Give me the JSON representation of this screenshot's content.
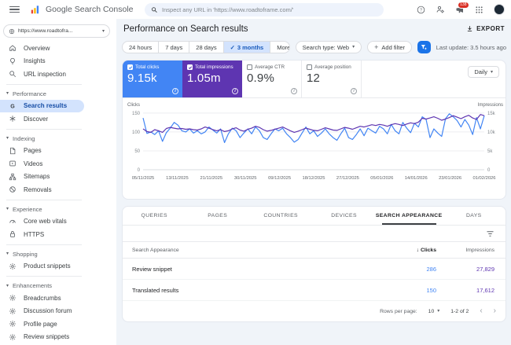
{
  "header": {
    "app_title": "Google Search Console",
    "search_placeholder": "Inspect any URL in 'https://www.roadtoframe.com/'",
    "notification_count": "138"
  },
  "sidebar": {
    "property_label": "https://www.roadtofra...",
    "sections": [
      {
        "title": null,
        "items": [
          {
            "label": "Overview",
            "icon": "home"
          },
          {
            "label": "Insights",
            "icon": "bulb"
          },
          {
            "label": "URL inspection",
            "icon": "magnifier"
          }
        ]
      },
      {
        "title": "Performance",
        "items": [
          {
            "label": "Search results",
            "icon": "g-letter",
            "active": true
          },
          {
            "label": "Discover",
            "icon": "discover"
          }
        ]
      },
      {
        "title": "Indexing",
        "items": [
          {
            "label": "Pages",
            "icon": "pages"
          },
          {
            "label": "Videos",
            "icon": "videos"
          },
          {
            "label": "Sitemaps",
            "icon": "sitemaps"
          },
          {
            "label": "Removals",
            "icon": "removals"
          }
        ]
      },
      {
        "title": "Experience",
        "items": [
          {
            "label": "Core web vitals",
            "icon": "gauge"
          },
          {
            "label": "HTTPS",
            "icon": "lock"
          }
        ]
      },
      {
        "title": "Shopping",
        "items": [
          {
            "label": "Product snippets",
            "icon": "gear"
          }
        ]
      },
      {
        "title": "Enhancements",
        "items": [
          {
            "label": "Breadcrumbs",
            "icon": "gear"
          },
          {
            "label": "Discussion forum",
            "icon": "gear"
          },
          {
            "label": "Profile page",
            "icon": "gear"
          },
          {
            "label": "Review snippets",
            "icon": "gear"
          }
        ]
      }
    ]
  },
  "page": {
    "title": "Performance on Search results",
    "export_label": "EXPORT",
    "last_update": "Last update: 3.5 hours ago"
  },
  "filters": {
    "date_ranges": [
      "24 hours",
      "7 days",
      "28 days",
      "3 months"
    ],
    "selected_range": "3 months",
    "more_label": "More",
    "search_type_label": "Search type: Web",
    "add_filter_label": "Add filter"
  },
  "metrics": {
    "granularity": "Daily",
    "cards": [
      {
        "label": "Total clicks",
        "value": "9.15k",
        "checked": true,
        "color": "#4285f4"
      },
      {
        "label": "Total impressions",
        "value": "1.05m",
        "checked": true,
        "color": "#5e35b1"
      },
      {
        "label": "Average CTR",
        "value": "0.9%",
        "checked": false
      },
      {
        "label": "Average position",
        "value": "12",
        "checked": false
      }
    ]
  },
  "chart_data": {
    "type": "line",
    "left_axis_label": "Clicks",
    "right_axis_label": "Impressions",
    "left_ticks": [
      150,
      100,
      50,
      0
    ],
    "right_tick_labels": [
      "15k",
      "10k",
      "5k",
      "0"
    ],
    "left_max": 160,
    "right_max": 16000,
    "x_tick_labels": [
      "05/11/2025",
      "13/11/2025",
      "21/11/2025",
      "30/11/2025",
      "09/12/2025",
      "18/12/2025",
      "27/12/2025",
      "05/01/2026",
      "14/01/2026",
      "23/01/2026",
      "01/02/2026"
    ],
    "series": [
      {
        "name": "Total clicks",
        "axis": "left",
        "color": "#4285f4",
        "values": [
          137,
          96,
          100,
          93,
          103,
          75,
          98,
          110,
          125,
          118,
          103,
          100,
          108,
          97,
          103,
          95,
          100,
          113,
          105,
          97,
          108,
          72,
          95,
          110,
          103,
          85,
          97,
          108,
          95,
          113,
          103,
          85,
          80,
          95,
          108,
          103,
          110,
          95,
          85,
          73,
          80,
          97,
          113,
          95,
          103,
          88,
          97,
          108,
          95,
          85,
          78,
          95,
          110,
          85,
          80,
          93,
          108,
          90,
          110,
          103,
          97,
          115,
          108,
          95,
          120,
          103,
          95,
          125,
          110,
          98,
          123,
          113,
          140,
          133,
          85,
          108,
          97,
          88,
          135,
          148,
          140,
          130,
          113,
          133,
          118,
          93,
          138,
          108,
          143
        ]
      },
      {
        "name": "Total impressions",
        "axis": "right",
        "color": "#5e35b1",
        "values": [
          10800,
          10100,
          9900,
          10600,
          10300,
          9900,
          10900,
          11200,
          11000,
          10800,
          10900,
          10700,
          10800,
          10600,
          10500,
          10800,
          11300,
          11000,
          10600,
          10300,
          10600,
          10100,
          10300,
          10800,
          11100,
          10500,
          10200,
          10700,
          11000,
          11500,
          11200,
          10600,
          10200,
          10400,
          10700,
          11000,
          11300,
          10800,
          10300,
          9900,
          10200,
          10600,
          11000,
          10700,
          10400,
          10300,
          10700,
          11100,
          10800,
          10500,
          10400,
          10800,
          11200,
          11000,
          10700,
          11100,
          11500,
          11300,
          11600,
          11900,
          11700,
          12000,
          11800,
          11500,
          11900,
          12200,
          12000,
          11700,
          12100,
          12400,
          12200,
          12600,
          13600,
          13400,
          13700,
          14000,
          13600,
          13100,
          13400,
          13800,
          14300,
          13900,
          13500,
          14000,
          14400,
          13700,
          13300,
          14600,
          14300
        ]
      }
    ]
  },
  "table": {
    "tabs": [
      "QUERIES",
      "PAGES",
      "COUNTRIES",
      "DEVICES",
      "SEARCH APPEARANCE",
      "DAYS"
    ],
    "active_tab": "SEARCH APPEARANCE",
    "columns": [
      "Search Appearance",
      "Clicks",
      "Impressions"
    ],
    "sort_icon": "↓",
    "rows": [
      {
        "name": "Review snippet",
        "clicks": "286",
        "impressions": "27,829"
      },
      {
        "name": "Translated results",
        "clicks": "150",
        "impressions": "17,612"
      }
    ],
    "pagination": {
      "rows_per_page_label": "Rows per page:",
      "rows_per_page": "10",
      "range_label": "1-2 of 2"
    }
  }
}
